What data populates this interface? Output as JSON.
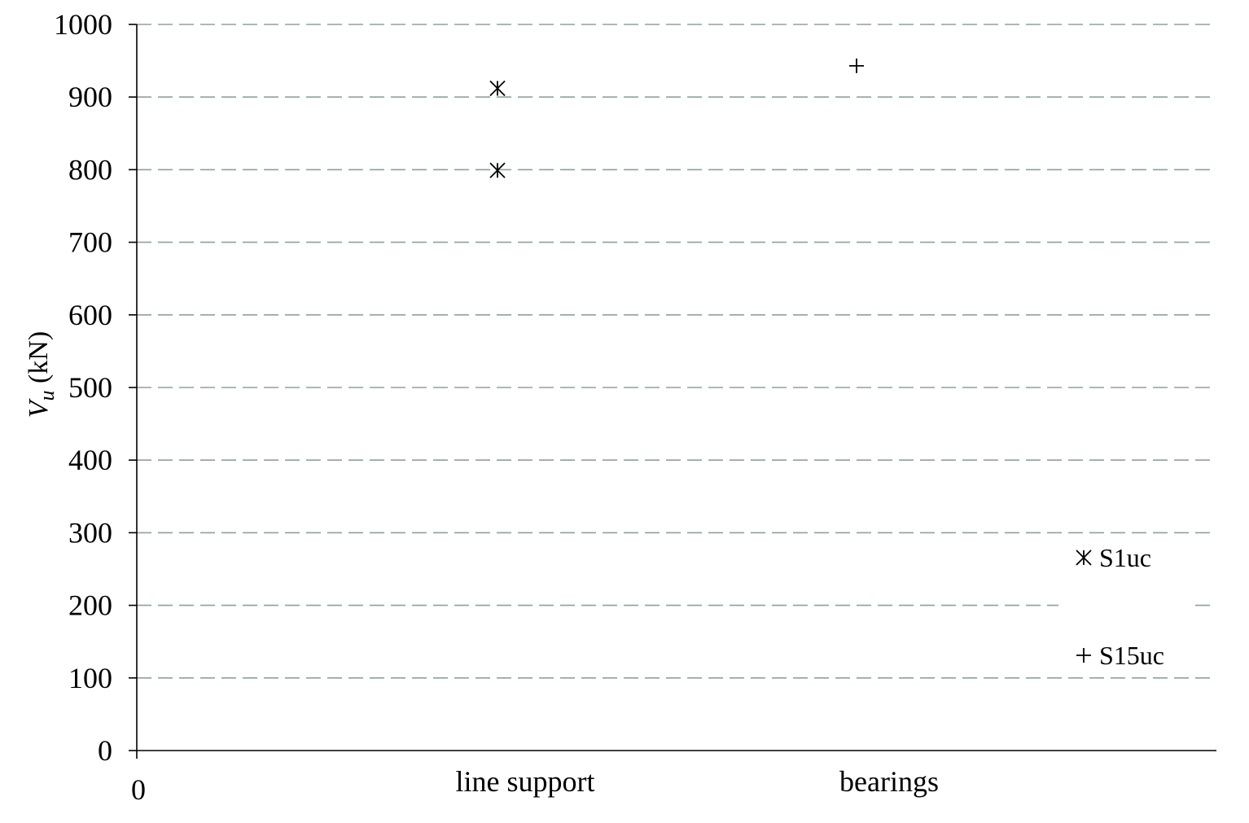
{
  "chart_data": {
    "type": "scatter",
    "categories": [
      "line support",
      "bearings"
    ],
    "x_origin_label": "0",
    "ylabel_main": "V",
    "ylabel_sub": "u",
    "ylabel_unit": " (kN)",
    "ylim": [
      0,
      1000
    ],
    "yticks": [
      0,
      100,
      200,
      300,
      400,
      500,
      600,
      700,
      800,
      900,
      1000
    ],
    "grid": true,
    "legend_position": "bottom-right",
    "series": [
      {
        "name": "S1uc",
        "marker": "asterisk",
        "points": [
          {
            "category": "line support",
            "y": 912
          },
          {
            "category": "line support",
            "y": 799
          }
        ]
      },
      {
        "name": "S15uc",
        "marker": "plus",
        "points": [
          {
            "category": "bearings",
            "y": 943
          }
        ]
      }
    ],
    "colors": {
      "marker": "#000000",
      "grid": "#8ea0a0",
      "axis": "#000000"
    }
  }
}
